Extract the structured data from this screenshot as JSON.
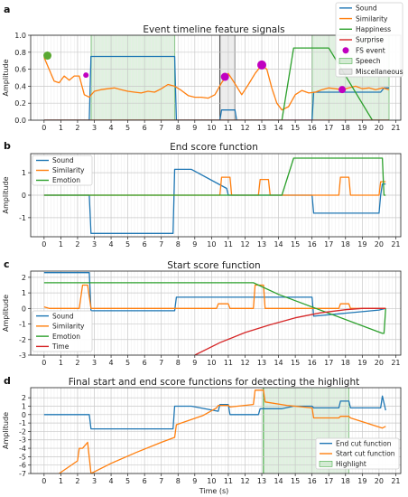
{
  "colors": {
    "sound": "#1f77b4",
    "similarity": "#ff7f0e",
    "emotion": "#2ca02c",
    "surprise": "#d62728",
    "time": "#d62728",
    "fs_event": "#c000c0",
    "speech": "#2ca02c",
    "misc": "#888888",
    "highlight": "#2ca02c"
  },
  "chart_data": [
    {
      "type": "line",
      "panel_label": "a",
      "title": "Event timeline feature signals",
      "xlabel": "",
      "ylabel": "Amplitude",
      "xlim": [
        -0.8,
        21.3
      ],
      "ylim": [
        0.0,
        1.0
      ],
      "xticks": [
        0,
        1,
        2,
        3,
        4,
        5,
        6,
        7,
        8,
        9,
        10,
        11,
        12,
        13,
        14,
        15,
        16,
        17,
        18,
        19,
        20,
        21
      ],
      "yticks": [
        0.0,
        0.2,
        0.4,
        0.6,
        0.8,
        1.0
      ],
      "grid": true,
      "legend_position": "top-right",
      "spans": [
        {
          "name": "Speech",
          "color": "speech",
          "ranges": [
            [
              2.8,
              7.8
            ],
            [
              16.0,
              20.6
            ]
          ]
        },
        {
          "name": "Miscellaneous",
          "color": "misc",
          "ranges": [
            [
              10.5,
              11.4
            ]
          ]
        }
      ],
      "series": [
        {
          "name": "Sound",
          "color": "sound",
          "x": [
            0,
            2.7,
            2.8,
            7.8,
            7.9,
            10.5,
            10.6,
            11.4,
            11.5,
            16.0,
            16.1,
            20.1,
            20.3,
            20.6
          ],
          "y": [
            0,
            0,
            0.75,
            0.75,
            0,
            0,
            0.12,
            0.12,
            0,
            0,
            0.33,
            0.33,
            0.38,
            0.38
          ]
        },
        {
          "name": "Similarity",
          "color": "similarity",
          "x": [
            0,
            0.3,
            0.6,
            0.9,
            1.2,
            1.5,
            1.8,
            2.1,
            2.4,
            2.7,
            3.0,
            3.4,
            3.8,
            4.2,
            4.6,
            5.0,
            5.4,
            5.8,
            6.2,
            6.6,
            7.0,
            7.4,
            7.8,
            8.2,
            8.6,
            9.0,
            9.4,
            9.8,
            10.2,
            10.6,
            11.0,
            11.4,
            11.8,
            12.2,
            12.6,
            13.0,
            13.3,
            13.6,
            13.9,
            14.2,
            14.6,
            15.0,
            15.4,
            15.8,
            16.2,
            16.6,
            17.0,
            17.4,
            17.8,
            18.2,
            18.6,
            19.0,
            19.4,
            19.8,
            20.2,
            20.6
          ],
          "y": [
            0.74,
            0.6,
            0.46,
            0.44,
            0.52,
            0.47,
            0.52,
            0.52,
            0.3,
            0.27,
            0.34,
            0.36,
            0.37,
            0.38,
            0.36,
            0.34,
            0.33,
            0.32,
            0.34,
            0.33,
            0.37,
            0.42,
            0.4,
            0.35,
            0.29,
            0.27,
            0.27,
            0.26,
            0.3,
            0.44,
            0.55,
            0.43,
            0.3,
            0.42,
            0.55,
            0.65,
            0.6,
            0.38,
            0.2,
            0.12,
            0.16,
            0.3,
            0.35,
            0.32,
            0.33,
            0.36,
            0.38,
            0.37,
            0.36,
            0.38,
            0.4,
            0.37,
            0.38,
            0.36,
            0.38,
            0.36
          ]
        },
        {
          "name": "Happiness",
          "color": "emotion",
          "x": [
            0,
            14.2,
            14.9,
            17.0,
            19.6,
            20.6
          ],
          "y": [
            0,
            0,
            0.85,
            0.85,
            0,
            0
          ]
        },
        {
          "name": "Surprise",
          "color": "surprise",
          "x": [
            0,
            20.6
          ],
          "y": [
            0,
            0
          ]
        }
      ],
      "points": {
        "name": "FS event",
        "color": "fs_event",
        "x": [
          0.2,
          2.5,
          10.8,
          13.0,
          17.8
        ],
        "y": [
          0.76,
          0.53,
          0.51,
          0.65,
          0.36
        ],
        "sizes": [
          7,
          4,
          7,
          8,
          6
        ]
      },
      "legend": [
        "Sound",
        "Similarity",
        "Happiness",
        "Surprise",
        "FS event",
        "Speech",
        "Miscellaneous"
      ]
    },
    {
      "type": "line",
      "panel_label": "b",
      "title": "End score function",
      "xlabel": "",
      "ylabel": "Amplitude",
      "xlim": [
        -0.8,
        21.3
      ],
      "ylim": [
        -1.85,
        1.85
      ],
      "xticks": [
        0,
        1,
        2,
        3,
        4,
        5,
        6,
        7,
        8,
        9,
        10,
        11,
        12,
        13,
        14,
        15,
        16,
        17,
        18,
        19,
        20,
        21
      ],
      "yticks": [
        -1,
        0,
        1
      ],
      "grid": true,
      "legend_position": "top-left",
      "spans": [],
      "series": [
        {
          "name": "Sound",
          "color": "sound",
          "x": [
            0,
            2.7,
            2.8,
            7.7,
            7.8,
            8.8,
            10.9,
            11.0,
            16.0,
            16.1,
            20.0,
            20.1,
            20.2,
            20.4
          ],
          "y": [
            0,
            0,
            -1.7,
            -1.7,
            1.15,
            1.15,
            0.3,
            0.0,
            0.0,
            -0.8,
            -0.8,
            0.0,
            0.5,
            0.5
          ]
        },
        {
          "name": "Similarity",
          "color": "similarity",
          "x": [
            0,
            10.5,
            10.6,
            11.1,
            11.2,
            12.8,
            12.9,
            13.4,
            13.5,
            17.6,
            17.7,
            18.2,
            18.3,
            20.0,
            20.1,
            20.4
          ],
          "y": [
            0,
            0,
            0.8,
            0.8,
            0,
            0,
            0.7,
            0.7,
            0,
            0,
            0.8,
            0.8,
            0,
            0,
            0.6,
            0.6
          ]
        },
        {
          "name": "Emotion",
          "color": "emotion",
          "x": [
            0,
            14.2,
            14.9,
            20.2,
            20.3,
            20.4
          ],
          "y": [
            0,
            0,
            1.65,
            1.65,
            0,
            0
          ]
        }
      ],
      "legend": [
        "Sound",
        "Similarity",
        "Emotion"
      ]
    },
    {
      "type": "line",
      "panel_label": "c",
      "title": "Start score function",
      "xlabel": "",
      "ylabel": "Amplitude",
      "xlim": [
        -0.8,
        21.3
      ],
      "ylim": [
        -3.0,
        2.4
      ],
      "xticks": [
        0,
        1,
        2,
        3,
        4,
        5,
        6,
        7,
        8,
        9,
        10,
        11,
        12,
        13,
        14,
        15,
        16,
        17,
        18,
        19,
        20,
        21
      ],
      "yticks": [
        -3,
        -2,
        -1,
        0,
        1,
        2
      ],
      "grid": true,
      "legend_position": "bottom-left",
      "spans": [],
      "series": [
        {
          "name": "Sound",
          "color": "sound",
          "x": [
            0,
            2.7,
            2.8,
            7.8,
            7.9,
            16.0,
            16.1,
            20.0,
            20.4
          ],
          "y": [
            2.3,
            2.3,
            -0.15,
            -0.15,
            0.72,
            0.72,
            -0.5,
            -0.1,
            0.0
          ]
        },
        {
          "name": "Similarity",
          "color": "similarity",
          "x": [
            0,
            0.3,
            2.1,
            2.3,
            2.6,
            2.8,
            10.3,
            10.4,
            11.0,
            11.1,
            12.5,
            12.6,
            13.1,
            13.2,
            17.6,
            17.7,
            18.2,
            18.3,
            20.4
          ],
          "y": [
            0.1,
            0.0,
            0.0,
            1.5,
            1.5,
            0.0,
            0.0,
            0.3,
            0.3,
            0.0,
            0.0,
            1.5,
            1.5,
            0.0,
            0.0,
            0.3,
            0.3,
            0.0,
            0.0
          ]
        },
        {
          "name": "Emotion",
          "color": "emotion",
          "x": [
            0,
            12.5,
            14.0,
            20.2,
            20.3,
            20.4
          ],
          "y": [
            1.65,
            1.65,
            0.9,
            -1.6,
            -1.6,
            0.0
          ]
        },
        {
          "name": "Time",
          "color": "time",
          "x": [
            9.0,
            10.5,
            12.0,
            13.5,
            15.0,
            16.5,
            18.0,
            19.0,
            20.4
          ],
          "y": [
            -3.0,
            -2.2,
            -1.55,
            -1.05,
            -0.6,
            -0.28,
            -0.08,
            0.0,
            0.0
          ]
        }
      ],
      "legend": [
        "Sound",
        "Similarity",
        "Emotion",
        "Time"
      ]
    },
    {
      "type": "line",
      "panel_label": "d",
      "title": "Final start and end score functions for detecting the highlight",
      "xlabel": "Time (s)",
      "ylabel": "Amplitude",
      "xlim": [
        -0.8,
        21.3
      ],
      "ylim": [
        -7.0,
        3.2
      ],
      "xticks": [
        0,
        1,
        2,
        3,
        4,
        5,
        6,
        7,
        8,
        9,
        10,
        11,
        12,
        13,
        14,
        15,
        16,
        17,
        18,
        19,
        20,
        21
      ],
      "yticks": [
        -7,
        -6,
        -5,
        -4,
        -3,
        -2,
        -1,
        0,
        1,
        2
      ],
      "grid": true,
      "legend_position": "bottom-right",
      "spans": [
        {
          "name": "Highlight",
          "color": "highlight",
          "ranges": [
            [
              13.1,
              18.2
            ]
          ]
        }
      ],
      "series": [
        {
          "name": "End cut function",
          "color": "sound",
          "x": [
            0,
            2.7,
            2.8,
            7.7,
            7.8,
            8.8,
            10.4,
            10.5,
            11.0,
            11.1,
            12.8,
            12.9,
            13.4,
            13.5,
            14.2,
            14.9,
            16.0,
            16.1,
            17.6,
            17.7,
            18.2,
            18.3,
            20.0,
            20.1,
            20.2,
            20.4
          ],
          "y": [
            0,
            0,
            -1.7,
            -1.7,
            1.0,
            1.0,
            0.4,
            1.2,
            1.2,
            0.0,
            0.0,
            0.7,
            0.7,
            0.7,
            0.7,
            1.0,
            1.0,
            0.8,
            0.8,
            1.6,
            1.6,
            0.8,
            0.8,
            0.8,
            2.2,
            0.5
          ]
        },
        {
          "name": "Start cut function",
          "color": "similarity",
          "x": [
            0.9,
            2.0,
            2.1,
            2.3,
            2.6,
            2.8,
            4.0,
            5.5,
            7.0,
            7.8,
            7.9,
            9.5,
            10.3,
            10.4,
            11.0,
            11.1,
            12.5,
            12.6,
            13.1,
            13.2,
            14.5,
            16.0,
            16.1,
            17.6,
            17.7,
            18.2,
            18.3,
            20.2,
            20.4
          ],
          "y": [
            -7.0,
            -5.5,
            -4.0,
            -4.0,
            -3.3,
            -7.0,
            -5.8,
            -4.5,
            -3.3,
            -2.7,
            -1.2,
            -0.1,
            0.8,
            1.1,
            1.1,
            0.9,
            1.2,
            2.9,
            2.9,
            1.5,
            1.1,
            0.8,
            -0.4,
            -0.4,
            -0.2,
            -0.2,
            -0.4,
            -1.6,
            -1.4
          ]
        }
      ],
      "legend": [
        "End cut function",
        "Start cut function",
        "Highlight"
      ]
    }
  ]
}
